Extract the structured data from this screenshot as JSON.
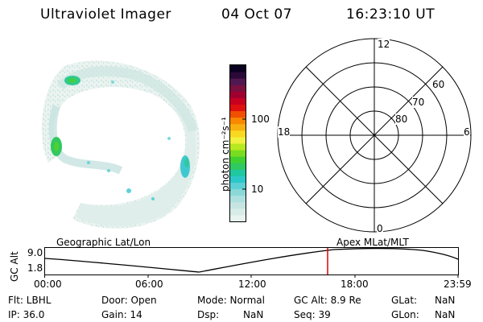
{
  "header": {
    "instrument": "Ultraviolet Imager",
    "date": "04 Oct 07",
    "time": "16:23:10 UT"
  },
  "colorbar": {
    "unit_label": "photon cm⁻²s⁻¹",
    "tick_100": "100",
    "tick_10": "10",
    "colors": [
      "#e8f4f0",
      "#d8ece8",
      "#c6e4e2",
      "#aee0e0",
      "#8cd8d8",
      "#5cd0d4",
      "#2cc8c8",
      "#20c8a0",
      "#30c860",
      "#40d030",
      "#78dc20",
      "#b8e820",
      "#f0f040",
      "#f8d820",
      "#f8b010",
      "#f88800",
      "#f05000",
      "#e01010",
      "#c80020",
      "#a00030",
      "#781040",
      "#501850",
      "#2a0838",
      "#0a0020"
    ]
  },
  "polar": {
    "mlt_top": "12",
    "mlt_left": "18",
    "mlt_right": "6",
    "mlt_bottom": "0",
    "lat_60": "60",
    "lat_70": "70",
    "lat_80": "80"
  },
  "timeline": {
    "left_label": "Geographic Lat/Lon",
    "right_label": "Apex MLat/MLT",
    "axis_label": "GC Alt",
    "ytick_top": "9.0",
    "ytick_bottom": "1.8",
    "xticks": [
      "00:00",
      "06:00",
      "12:00",
      "18:00",
      "23:59"
    ],
    "current_marker_color": "#e00000"
  },
  "info": {
    "filter": "Flt: LBHL",
    "door": "Door: Open",
    "mode": "Mode: Normal",
    "gc_alt": "GC Alt: 8.9 Re",
    "glat_label": "GLat:",
    "glat_value": "NaN",
    "ip": "IP: 36.0",
    "gain": "Gain: 14",
    "dsp_label": "Dsp:",
    "dsp_value": "NaN",
    "seq": "Seq: 39",
    "glon_label": "GLon:",
    "glon_value": "NaN"
  }
}
